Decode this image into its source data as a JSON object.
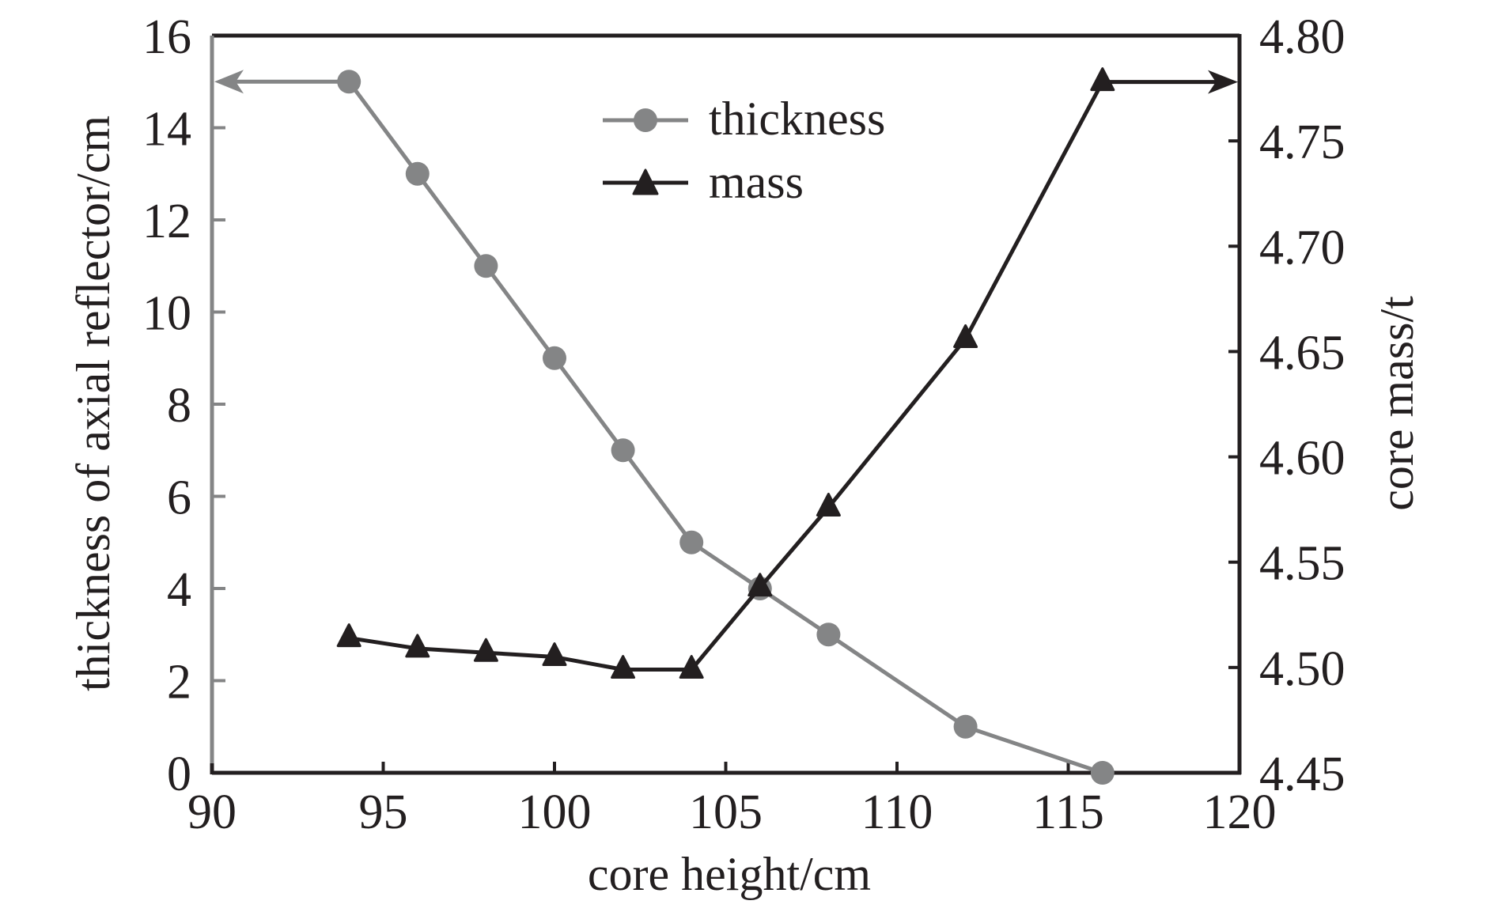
{
  "chart_data": {
    "type": "line",
    "title": "",
    "xlabel": "core height/cm",
    "ylabel": "thickness of axial reflector/cm",
    "y2label": "core mass/t",
    "xlim": [
      90,
      120
    ],
    "ylim": [
      0,
      16
    ],
    "y2lim": [
      4.45,
      4.8
    ],
    "xticks": [
      90,
      95,
      100,
      105,
      110,
      115,
      120
    ],
    "xtick_labels": [
      "90",
      "95",
      "100",
      "105",
      "110",
      "115",
      "120"
    ],
    "yticks": [
      0,
      2,
      4,
      6,
      8,
      10,
      12,
      14,
      16
    ],
    "ytick_labels": [
      "0",
      "2",
      "4",
      "6",
      "8",
      "10",
      "12",
      "14",
      "16"
    ],
    "y2ticks": [
      4.45,
      4.5,
      4.55,
      4.6,
      4.65,
      4.7,
      4.75,
      4.8
    ],
    "y2tick_labels": [
      "4.45",
      "4.50",
      "4.55",
      "4.60",
      "4.65",
      "4.70",
      "4.75",
      "4.80"
    ],
    "grid": false,
    "legend_position": "top-center",
    "series": [
      {
        "name": "thickness",
        "axis": "left",
        "marker": "circle",
        "color": "#848586",
        "x": [
          94,
          96,
          98,
          100,
          102,
          104,
          106,
          108,
          112,
          116
        ],
        "values": [
          15,
          13,
          11,
          9,
          7,
          5,
          4,
          3,
          1,
          0
        ],
        "arrow_direction": "left",
        "arrow_from_x": 94
      },
      {
        "name": "mass",
        "axis": "right",
        "marker": "triangle",
        "color": "#231f20",
        "x": [
          94,
          96,
          98,
          100,
          102,
          104,
          106,
          108,
          112,
          116
        ],
        "values": [
          4.514,
          4.509,
          4.507,
          4.505,
          4.499,
          4.499,
          4.538,
          4.576,
          4.656,
          4.778
        ],
        "arrow_direction": "right",
        "arrow_from_x": 116
      }
    ]
  },
  "colors": {
    "axis_dark": "#231f20",
    "axis_left": "#848586"
  }
}
